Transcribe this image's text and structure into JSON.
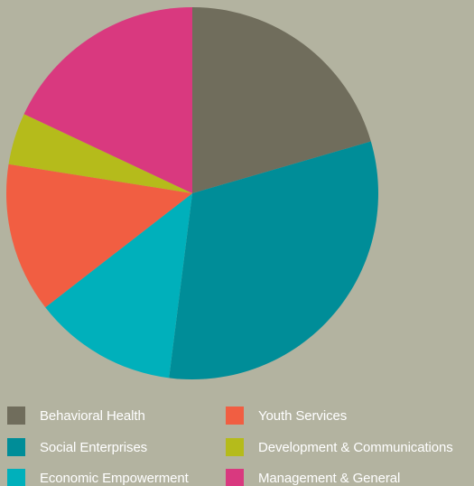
{
  "chart_data": {
    "type": "pie",
    "title": "",
    "legend_position": "bottom",
    "slices": [
      {
        "label": "Behavioral Health",
        "value": 20.5,
        "color": "#706d5c"
      },
      {
        "label": "Social Enterprises",
        "value": 31.5,
        "color": "#008d98"
      },
      {
        "label": "Economic Empowerment",
        "value": 12.5,
        "color": "#00b0bb"
      },
      {
        "label": "Youth Services",
        "value": 13.0,
        "color": "#f15e42"
      },
      {
        "label": "Development & Communications",
        "value": 4.5,
        "color": "#b5bb1b"
      },
      {
        "label": "Management & General",
        "value": 18.0,
        "color": "#d9397f"
      }
    ]
  }
}
